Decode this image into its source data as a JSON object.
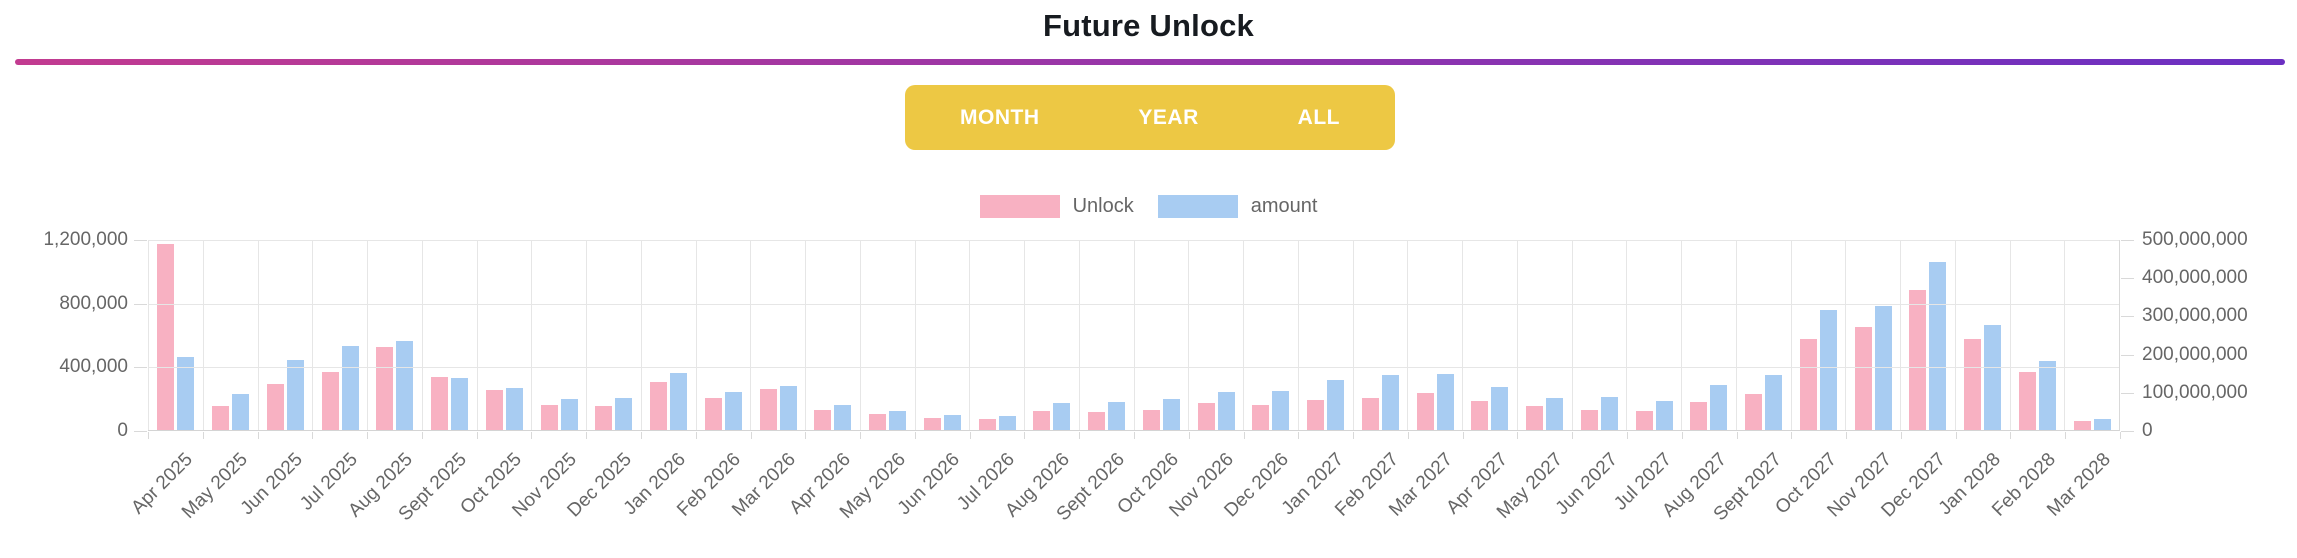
{
  "header": {
    "title": "Future Unlock"
  },
  "toolbar": {
    "buttons": {
      "0": "MONTH",
      "1": "YEAR",
      "2": "ALL"
    }
  },
  "legend": [
    {
      "label": "Unlock",
      "color": "#f8b1c2"
    },
    {
      "label": "amount",
      "color": "#a8ccf2"
    }
  ],
  "colors": {
    "gradient_start": "#c23b90",
    "gradient_end": "#6b2fc2",
    "toolbar_bg": "#edc844",
    "axis_text": "#666666",
    "grid": "#e6e6e6"
  },
  "chart_data": {
    "type": "bar",
    "title": "Future Unlock",
    "categories": [
      "Apr 2025",
      "May 2025",
      "Jun 2025",
      "Jul 2025",
      "Aug 2025",
      "Sept 2025",
      "Oct 2025",
      "Nov 2025",
      "Dec 2025",
      "Jan 2026",
      "Feb 2026",
      "Mar 2026",
      "Apr 2026",
      "May 2026",
      "Jun 2026",
      "Jul 2026",
      "Aug 2026",
      "Sept 2026",
      "Oct 2026",
      "Nov 2026",
      "Dec 2026",
      "Jan 2027",
      "Feb 2027",
      "Mar 2027",
      "Apr 2027",
      "May 2027",
      "Jun 2027",
      "Jul 2027",
      "Aug 2027",
      "Sept 2027",
      "Oct 2027",
      "Nov 2027",
      "Dec 2027",
      "Jan 2028",
      "Feb 2028",
      "Mar 2028"
    ],
    "series": [
      {
        "name": "Unlock",
        "axis": "left",
        "color": "#f8b1c2",
        "values": [
          1170000,
          150000,
          290000,
          365000,
          520000,
          335000,
          250000,
          155000,
          153000,
          300000,
          198000,
          260000,
          125000,
          100000,
          78000,
          66000,
          118000,
          116000,
          127000,
          168000,
          157000,
          186000,
          201000,
          232000,
          180000,
          148000,
          128000,
          122000,
          173000,
          225000,
          572000,
          645000,
          880000,
          570000,
          366000,
          58000
        ]
      },
      {
        "name": "amount",
        "axis": "right",
        "color": "#a8ccf2",
        "values": [
          190000000,
          93000000,
          182000000,
          220000000,
          233000000,
          135000000,
          111000000,
          80000000,
          85000000,
          149000000,
          100000000,
          115000000,
          65000000,
          50000000,
          39000000,
          37000000,
          70000000,
          74000000,
          80000000,
          100000000,
          103000000,
          130000000,
          144000000,
          147000000,
          112000000,
          85000000,
          86000000,
          77000000,
          118000000,
          143000000,
          314000000,
          325000000,
          440000000,
          275000000,
          181000000,
          28000000
        ]
      }
    ],
    "left_axis": {
      "max": 1200000,
      "ticks": [
        1200000,
        800000,
        400000,
        0
      ],
      "tick_labels": [
        "1,200,000",
        "800,000",
        "400,000",
        "0"
      ]
    },
    "right_axis": {
      "max": 500000000,
      "ticks": [
        500000000,
        400000000,
        300000000,
        200000000,
        100000000,
        0
      ],
      "tick_labels": [
        "500,000,000",
        "400,000,000",
        "300,000,000",
        "200,000,000",
        "100,000,000",
        "0"
      ]
    },
    "grid": true,
    "legend_position": "top",
    "x_label_rotation": -45
  }
}
